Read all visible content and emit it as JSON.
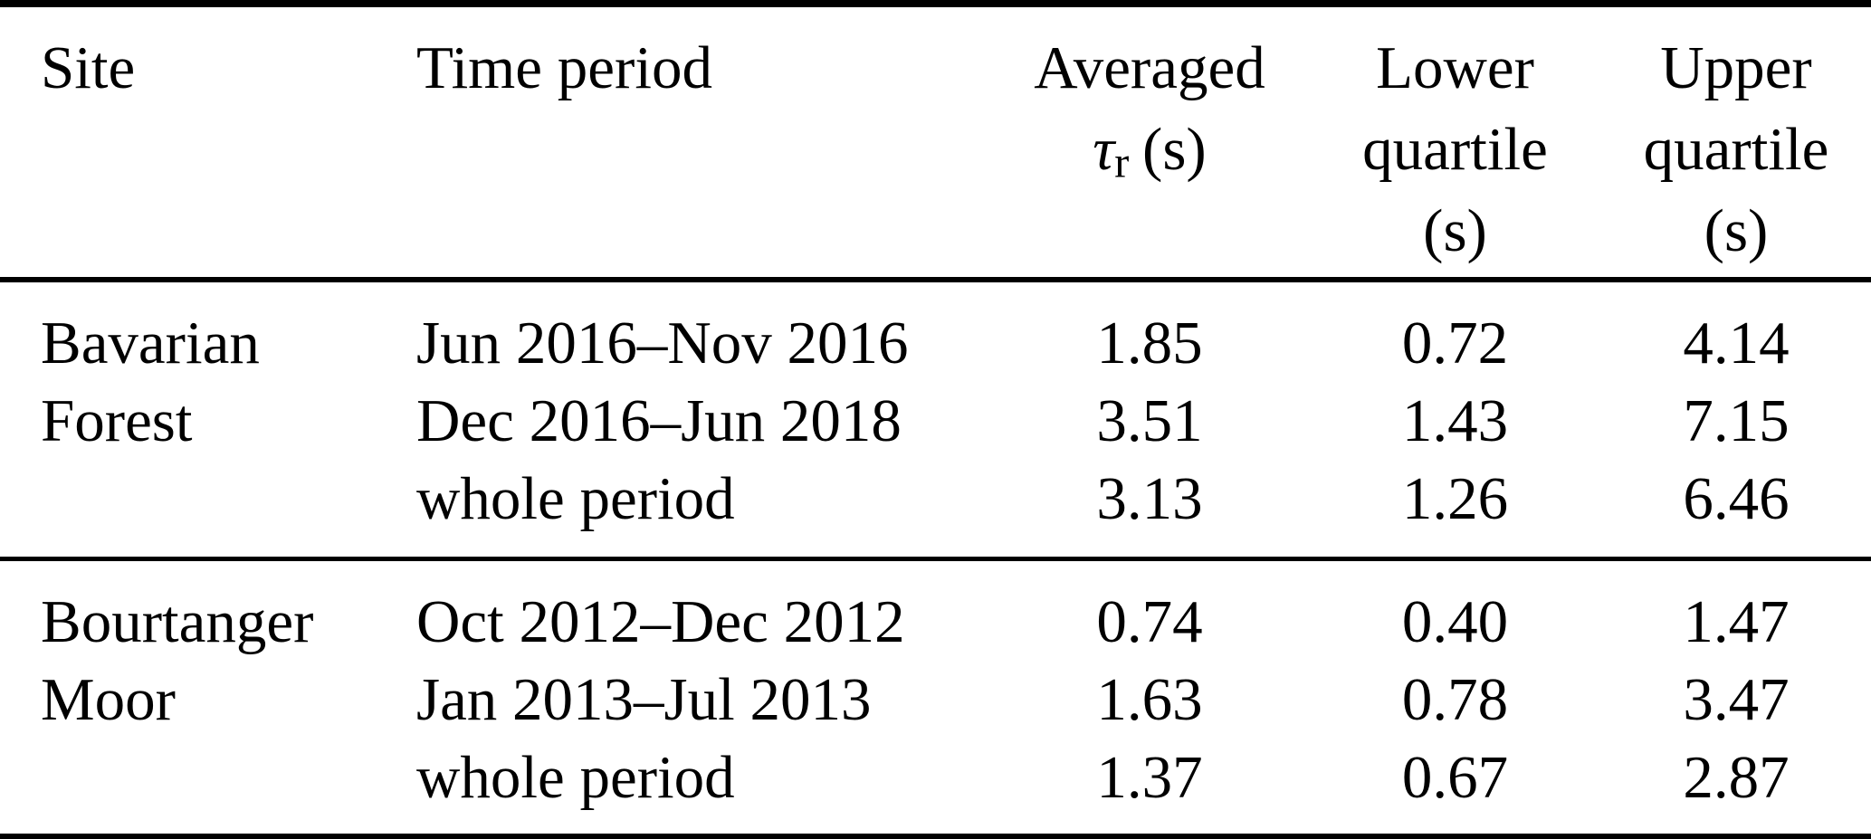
{
  "colors": {
    "text": "#000000",
    "background": "#ffffff",
    "rule": "#000000"
  },
  "header": {
    "site": "Site",
    "time_period": "Time period",
    "averaged": {
      "line1": "Averaged",
      "tau": "τ",
      "tau_sub": "r",
      "unit": "(s)"
    },
    "lower": {
      "line1": "Lower",
      "line2": "quartile",
      "unit": "(s)"
    },
    "upper": {
      "line1": "Upper",
      "line2": "quartile",
      "unit": "(s)"
    }
  },
  "groups": [
    {
      "site_line1": "Bavarian",
      "site_line2": "Forest",
      "rows": [
        {
          "period": "Jun 2016–Nov 2016",
          "avg": "1.85",
          "lower": "0.72",
          "upper": "4.14"
        },
        {
          "period": "Dec 2016–Jun 2018",
          "avg": "3.51",
          "lower": "1.43",
          "upper": "7.15"
        },
        {
          "period": "whole period",
          "avg": "3.13",
          "lower": "1.26",
          "upper": "6.46"
        }
      ]
    },
    {
      "site_line1": "Bourtanger",
      "site_line2": "Moor",
      "rows": [
        {
          "period": "Oct 2012–Dec 2012",
          "avg": "0.74",
          "lower": "0.40",
          "upper": "1.47"
        },
        {
          "period": "Jan 2013–Jul 2013",
          "avg": "1.63",
          "lower": "0.78",
          "upper": "3.47"
        },
        {
          "period": "whole period",
          "avg": "1.37",
          "lower": "0.67",
          "upper": "2.87"
        }
      ]
    }
  ],
  "chart_data": {
    "type": "table",
    "columns": [
      "Site",
      "Time period",
      "Averaged τr (s)",
      "Lower quartile (s)",
      "Upper quartile (s)"
    ],
    "rows": [
      [
        "Bavarian Forest",
        "Jun 2016–Nov 2016",
        1.85,
        0.72,
        4.14
      ],
      [
        "Bavarian Forest",
        "Dec 2016–Jun 2018",
        3.51,
        1.43,
        7.15
      ],
      [
        "Bavarian Forest",
        "whole period",
        3.13,
        1.26,
        6.46
      ],
      [
        "Bourtanger Moor",
        "Oct 2012–Dec 2012",
        0.74,
        0.4,
        1.47
      ],
      [
        "Bourtanger Moor",
        "Jan 2013–Jul 2013",
        1.63,
        0.78,
        3.47
      ],
      [
        "Bourtanger Moor",
        "whole period",
        1.37,
        0.67,
        2.87
      ]
    ]
  }
}
